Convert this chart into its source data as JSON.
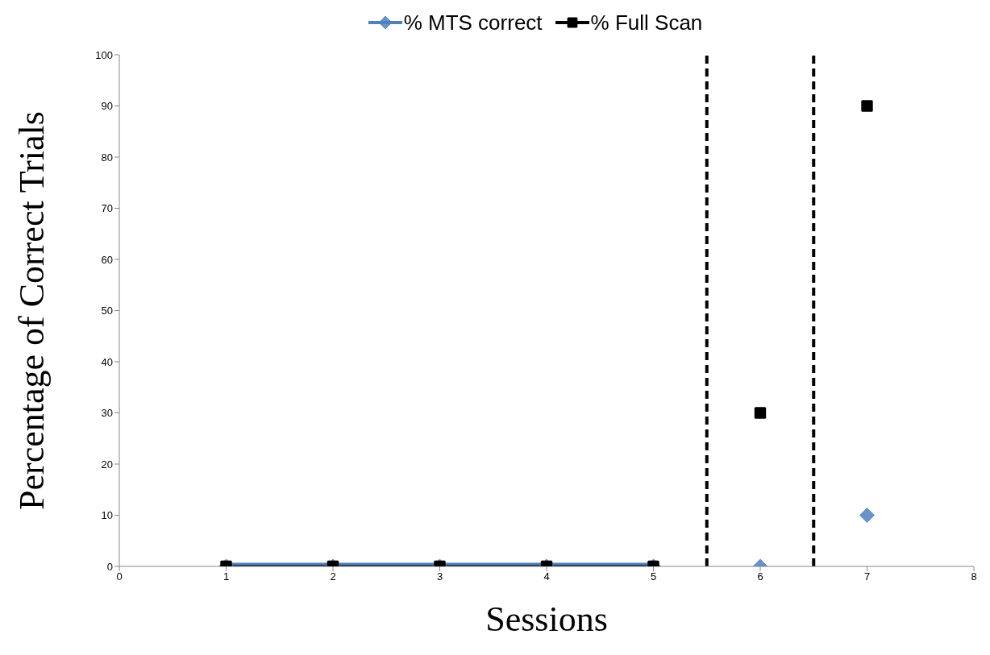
{
  "chart_data": {
    "type": "line",
    "xlabel": "Sessions",
    "ylabel": "Percentage of Correct Trials",
    "x": [
      1,
      2,
      3,
      4,
      5,
      5.5,
      6,
      6.5,
      7
    ],
    "series": [
      {
        "name": "% MTS correct",
        "color": "#4f81bd",
        "marker": "diamond",
        "values": [
          0,
          0,
          0,
          0,
          0,
          null,
          0,
          null,
          10
        ]
      },
      {
        "name": "% Full Scan",
        "color": "#000000",
        "marker": "square",
        "values": [
          0,
          0,
          0,
          0,
          0,
          null,
          30,
          null,
          90
        ]
      }
    ],
    "xlim": [
      0,
      8
    ],
    "xticks": [
      0,
      1,
      2,
      3,
      4,
      5,
      6,
      7,
      8
    ],
    "ylim": [
      0,
      100
    ],
    "yticks": [
      0,
      10,
      20,
      30,
      40,
      50,
      60,
      70,
      80,
      90,
      100
    ],
    "ref_lines": [
      {
        "axis": "x",
        "value": 5.5,
        "color": "#000000",
        "line_style": "dashed"
      },
      {
        "axis": "x",
        "value": 6.5,
        "color": "#000000",
        "line_style": "dashed"
      }
    ],
    "grid": false,
    "legend": "top",
    "line_style": "solid"
  }
}
